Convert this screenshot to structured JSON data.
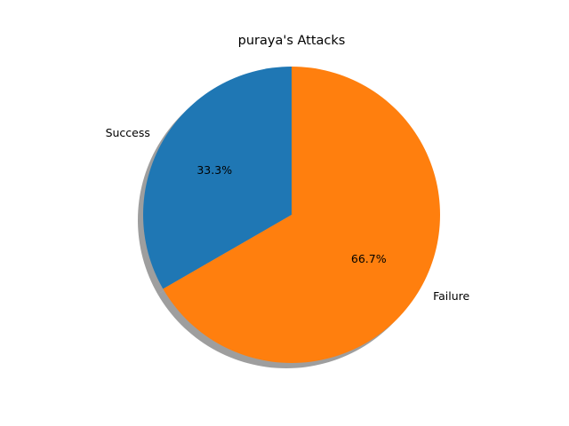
{
  "chart_data": {
    "type": "pie",
    "title": "puraya's Attacks",
    "labels": [
      "Success",
      "Failure"
    ],
    "values": [
      1,
      2
    ],
    "percent_labels": [
      "33.3%",
      "66.7%"
    ],
    "colors": [
      "#1f77b4",
      "#ff7f0e"
    ],
    "start_angle_deg": 90,
    "direction": "counterclockwise",
    "shadow": true
  }
}
